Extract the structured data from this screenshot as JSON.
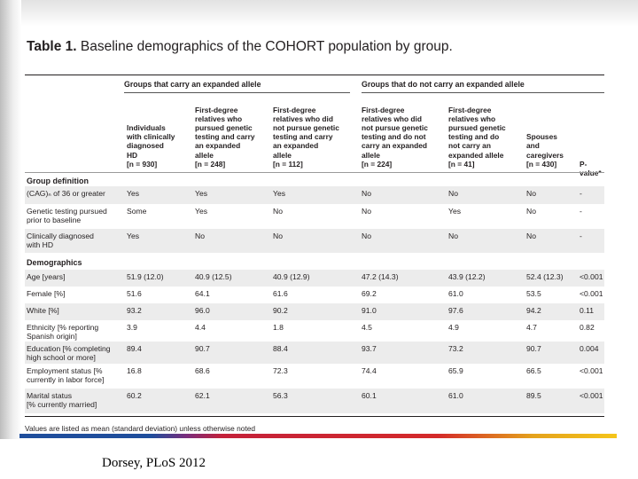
{
  "caption": {
    "label": "Table 1.",
    "text": "Baseline demographics of the COHORT population by group."
  },
  "group_headers": [
    "Groups that carry an expanded allele",
    "Groups that do not carry an expanded allele"
  ],
  "columns": [
    [
      "Individuals",
      "with clinically",
      "diagnosed",
      "HD",
      "[n = 930]"
    ],
    [
      "First-degree",
      "relatives who",
      "pursued genetic",
      "testing and carry",
      "an expanded",
      "allele",
      "[n = 248]"
    ],
    [
      "First-degree",
      "relatives who did",
      "not pursue genetic",
      "testing and carry",
      "an expanded",
      "allele",
      "[n = 112]"
    ],
    [
      "First-degree",
      "relatives who did",
      "not pursue genetic",
      "testing and do not",
      "carry an expanded",
      "allele",
      "[n = 224]"
    ],
    [
      "First-degree",
      "relatives who",
      "pursued genetic",
      "testing and do",
      "not carry an",
      "expanded allele",
      "[n = 41]"
    ],
    [
      "Spouses",
      "and",
      "caregivers",
      "[n = 430]"
    ],
    [
      "P-value*"
    ]
  ],
  "sections": {
    "group_definition": {
      "title": "Group definition",
      "rows": [
        {
          "label": [
            "(CAG)ₙ of 36 or greater"
          ],
          "values": [
            "Yes",
            "Yes",
            "Yes",
            "No",
            "No",
            "No",
            "-"
          ]
        },
        {
          "label": [
            "Genetic testing pursued",
            "prior to baseline"
          ],
          "values": [
            "Some",
            "Yes",
            "No",
            "No",
            "Yes",
            "No",
            "-"
          ]
        },
        {
          "label": [
            "Clinically diagnosed",
            "with HD"
          ],
          "values": [
            "Yes",
            "No",
            "No",
            "No",
            "No",
            "No",
            "-"
          ]
        }
      ]
    },
    "demographics": {
      "title": "Demographics",
      "rows": [
        {
          "label": [
            "Age [years]"
          ],
          "values": [
            "51.9 (12.0)",
            "40.9 (12.5)",
            "40.9 (12.9)",
            "47.2 (14.3)",
            "43.9 (12.2)",
            "52.4 (12.3)",
            "<0.001"
          ]
        },
        {
          "label": [
            "Female [%]"
          ],
          "values": [
            "51.6",
            "64.1",
            "61.6",
            "69.2",
            "61.0",
            "53.5",
            "<0.001"
          ]
        },
        {
          "label": [
            "White [%]"
          ],
          "values": [
            "93.2",
            "96.0",
            "90.2",
            "91.0",
            "97.6",
            "94.2",
            "0.11"
          ]
        },
        {
          "label": [
            "Ethnicity [% reporting",
            "Spanish origin]"
          ],
          "values": [
            "3.9",
            "4.4",
            "1.8",
            "4.5",
            "4.9",
            "4.7",
            "0.82"
          ]
        },
        {
          "label": [
            "Education [% completing",
            "high school or more]"
          ],
          "values": [
            "89.4",
            "90.7",
            "88.4",
            "93.7",
            "73.2",
            "90.7",
            "0.004"
          ]
        },
        {
          "label": [
            "Employment status [%",
            "currently in labor force]"
          ],
          "values": [
            "16.8",
            "68.6",
            "72.3",
            "74.4",
            "65.9",
            "66.5",
            "<0.001"
          ]
        },
        {
          "label": [
            "Marital status",
            "[% currently married]"
          ],
          "values": [
            "60.2",
            "62.1",
            "56.3",
            "60.1",
            "61.0",
            "89.5",
            "<0.001"
          ]
        }
      ]
    }
  },
  "footnote": "Values are listed as mean (standard deviation) unless otherwise noted",
  "citation": "Dorsey, PLoS 2012",
  "colors": {
    "text": "#231f20",
    "shade": "#ececec",
    "bar_start": "#1f4e9c",
    "bar_mid": "#d42a2a",
    "bar_end": "#f5c51a"
  }
}
